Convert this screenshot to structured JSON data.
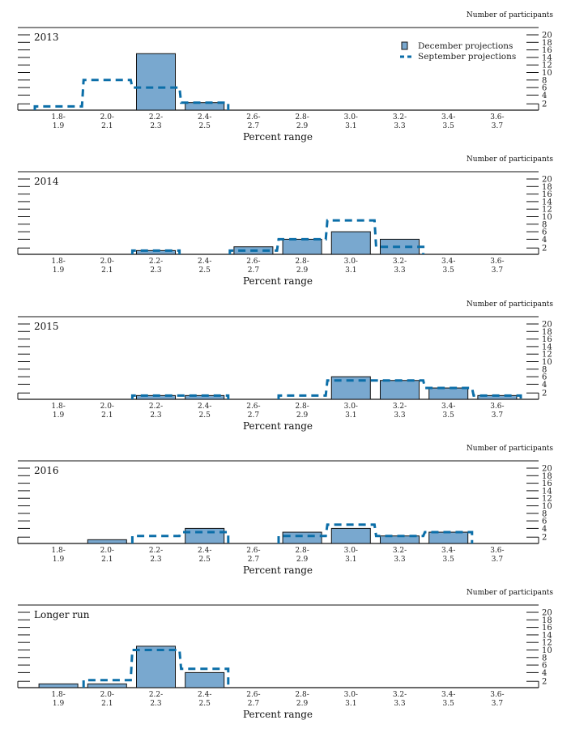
{
  "chart_data": {
    "type": "bar",
    "ylabel": "Number of participants",
    "xlabel": "Percent range",
    "ylim": [
      0,
      20
    ],
    "yticks": [
      2,
      4,
      6,
      8,
      10,
      12,
      14,
      16,
      18,
      20
    ],
    "categories": [
      [
        "1.8-",
        "1.9"
      ],
      [
        "2.0-",
        "2.1"
      ],
      [
        "2.2-",
        "2.3"
      ],
      [
        "2.4-",
        "2.5"
      ],
      [
        "2.6-",
        "2.7"
      ],
      [
        "2.8-",
        "2.9"
      ],
      [
        "3.0-",
        "3.1"
      ],
      [
        "3.2-",
        "3.3"
      ],
      [
        "3.4-",
        "3.5"
      ],
      [
        "3.6-",
        "3.7"
      ]
    ],
    "legend": {
      "position": "top-right",
      "entries": [
        {
          "name": "December projections",
          "style": "bar"
        },
        {
          "name": "September projections",
          "style": "dashed-line"
        }
      ]
    },
    "colors": {
      "december": "#79a8cf",
      "september": "#0b6ea8",
      "outline": "#111111"
    },
    "panels": [
      {
        "title": "2013",
        "series": [
          {
            "name": "December projections",
            "values": [
              0,
              0,
              15,
              2,
              0,
              0,
              0,
              0,
              0,
              0
            ]
          },
          {
            "name": "September projections",
            "values": [
              1,
              8,
              6,
              2,
              0,
              0,
              0,
              0,
              0,
              0
            ]
          }
        ]
      },
      {
        "title": "2014",
        "series": [
          {
            "name": "December projections",
            "values": [
              0,
              0,
              1,
              0,
              2,
              4,
              6,
              4,
              0,
              0
            ]
          },
          {
            "name": "September projections",
            "values": [
              0,
              0,
              1,
              0,
              1,
              4,
              9,
              2,
              0,
              0
            ]
          }
        ]
      },
      {
        "title": "2015",
        "series": [
          {
            "name": "December projections",
            "values": [
              0,
              0,
              1,
              1,
              0,
              0,
              6,
              5,
              3,
              1
            ]
          },
          {
            "name": "September projections",
            "values": [
              0,
              0,
              1,
              1,
              0,
              1,
              5,
              5,
              3,
              1
            ]
          }
        ]
      },
      {
        "title": "2016",
        "series": [
          {
            "name": "December projections",
            "values": [
              0,
              1,
              0,
              4,
              0,
              3,
              4,
              2,
              3,
              0
            ]
          },
          {
            "name": "September projections",
            "values": [
              0,
              0,
              2,
              3,
              0,
              2,
              5,
              2,
              3,
              0
            ]
          }
        ]
      },
      {
        "title": "Longer run",
        "series": [
          {
            "name": "December projections",
            "values": [
              1,
              1,
              11,
              4,
              0,
              0,
              0,
              0,
              0,
              0
            ]
          },
          {
            "name": "September projections",
            "values": [
              0,
              2,
              10,
              5,
              0,
              0,
              0,
              0,
              0,
              0
            ]
          }
        ]
      }
    ]
  }
}
